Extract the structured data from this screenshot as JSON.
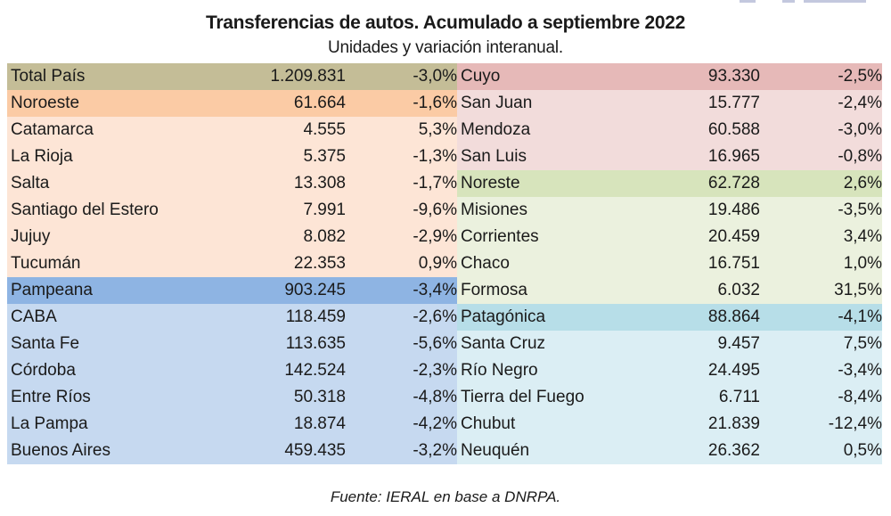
{
  "header": {
    "title": "Transferencias de autos. Acumulado a septiembre 2022",
    "subtitle": "Unidades y variación interanual."
  },
  "colors": {
    "total": "#c4bd97",
    "noroeste_header": "#fbcba5",
    "noroeste_body": "#fde5d6",
    "pampeana_header": "#8eb4e3",
    "pampeana_body": "#c6d9f0",
    "cuyo_header": "#e6b9b8",
    "cuyo_body": "#f2dcdb",
    "noreste_header": "#d7e4bc",
    "noreste_body": "#ebf1de",
    "patagonica_header": "#b7dee8",
    "patagonica_body": "#dbeef4"
  },
  "table": {
    "left": [
      {
        "name": "Total País",
        "units": "1.209.831",
        "variation": "-3,0%",
        "kind": "total"
      },
      {
        "name": "Noroeste",
        "units": "61.664",
        "variation": "-1,6%",
        "kind": "noroeste_header"
      },
      {
        "name": "Catamarca",
        "units": "4.555",
        "variation": "5,3%",
        "kind": "noroeste_body"
      },
      {
        "name": "La Rioja",
        "units": "5.375",
        "variation": "-1,3%",
        "kind": "noroeste_body"
      },
      {
        "name": "Salta",
        "units": "13.308",
        "variation": "-1,7%",
        "kind": "noroeste_body"
      },
      {
        "name": "Santiago del Estero",
        "units": "7.991",
        "variation": "-9,6%",
        "kind": "noroeste_body"
      },
      {
        "name": "Jujuy",
        "units": "8.082",
        "variation": "-2,9%",
        "kind": "noroeste_body"
      },
      {
        "name": "Tucumán",
        "units": "22.353",
        "variation": "0,9%",
        "kind": "noroeste_body"
      },
      {
        "name": "Pampeana",
        "units": "903.245",
        "variation": "-3,4%",
        "kind": "pampeana_header"
      },
      {
        "name": "CABA",
        "units": "118.459",
        "variation": "-2,6%",
        "kind": "pampeana_body"
      },
      {
        "name": "Santa Fe",
        "units": "113.635",
        "variation": "-5,6%",
        "kind": "pampeana_body"
      },
      {
        "name": "Córdoba",
        "units": "142.524",
        "variation": "-2,3%",
        "kind": "pampeana_body"
      },
      {
        "name": "Entre Ríos",
        "units": "50.318",
        "variation": "-4,8%",
        "kind": "pampeana_body"
      },
      {
        "name": "La Pampa",
        "units": "18.874",
        "variation": "-4,2%",
        "kind": "pampeana_body"
      },
      {
        "name": "Buenos Aires",
        "units": "459.435",
        "variation": "-3,2%",
        "kind": "pampeana_body"
      }
    ],
    "right": [
      {
        "name": "Cuyo",
        "units": "93.330",
        "variation": "-2,5%",
        "kind": "cuyo_header"
      },
      {
        "name": "San Juan",
        "units": "15.777",
        "variation": "-2,4%",
        "kind": "cuyo_body"
      },
      {
        "name": "Mendoza",
        "units": "60.588",
        "variation": "-3,0%",
        "kind": "cuyo_body"
      },
      {
        "name": "San Luis",
        "units": "16.965",
        "variation": "-0,8%",
        "kind": "cuyo_body"
      },
      {
        "name": "Noreste",
        "units": "62.728",
        "variation": "2,6%",
        "kind": "noreste_header"
      },
      {
        "name": "Misiones",
        "units": "19.486",
        "variation": "-3,5%",
        "kind": "noreste_body"
      },
      {
        "name": "Corrientes",
        "units": "20.459",
        "variation": "3,4%",
        "kind": "noreste_body"
      },
      {
        "name": "Chaco",
        "units": "16.751",
        "variation": "1,0%",
        "kind": "noreste_body"
      },
      {
        "name": "Formosa",
        "units": "6.032",
        "variation": "31,5%",
        "kind": "noreste_body"
      },
      {
        "name": "Patagónica",
        "units": "88.864",
        "variation": "-4,1%",
        "kind": "patagonica_header"
      },
      {
        "name": "Santa Cruz",
        "units": "9.457",
        "variation": "7,5%",
        "kind": "patagonica_body"
      },
      {
        "name": "Río Negro",
        "units": "24.495",
        "variation": "-3,4%",
        "kind": "patagonica_body"
      },
      {
        "name": "Tierra del Fuego",
        "units": "6.711",
        "variation": "-8,4%",
        "kind": "patagonica_body"
      },
      {
        "name": "Chubut",
        "units": "21.839",
        "variation": "-12,4%",
        "kind": "patagonica_body"
      },
      {
        "name": "Neuquén",
        "units": "26.362",
        "variation": "0,5%",
        "kind": "patagonica_body"
      }
    ]
  },
  "footer": {
    "source": "Fuente: IERAL en base a DNRPA."
  }
}
